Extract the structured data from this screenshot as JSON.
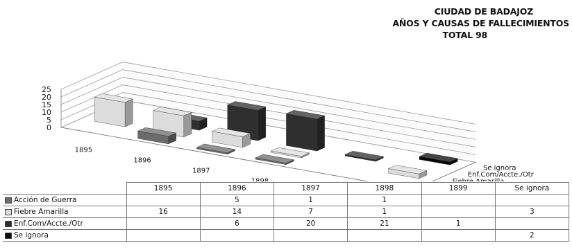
{
  "title_lines": [
    "CIUDAD DE BADAJOZ",
    "AÑOS Y CAUSAS DE FALLECIMIENTOS",
    "TOTAL 98"
  ],
  "chart_data": {
    "type": "bar",
    "subtype": "3d-clustered-column",
    "categories": [
      "1895",
      "1896",
      "1897",
      "1898",
      "1899",
      "Se ignora"
    ],
    "series": [
      {
        "name": "Acción de Guerra",
        "values": [
          null,
          5,
          1,
          1,
          null,
          null
        ],
        "color": "#6b6b6b"
      },
      {
        "name": "Fiebre Amarilla",
        "values": [
          16,
          14,
          7,
          1,
          null,
          3
        ],
        "color": "#dcdcdc"
      },
      {
        "name": "Enf.Com/Accte./Otr",
        "values": [
          null,
          6,
          20,
          21,
          1,
          null
        ],
        "color": "#2f2f2f"
      },
      {
        "name": "Se ignora",
        "values": [
          null,
          null,
          null,
          null,
          null,
          2
        ],
        "color": "#050505"
      }
    ],
    "yticks": [
      "0",
      "5",
      "10",
      "15",
      "20",
      "25"
    ],
    "ylim": [
      0,
      25
    ],
    "grid": true,
    "legend": "data-table-below"
  }
}
